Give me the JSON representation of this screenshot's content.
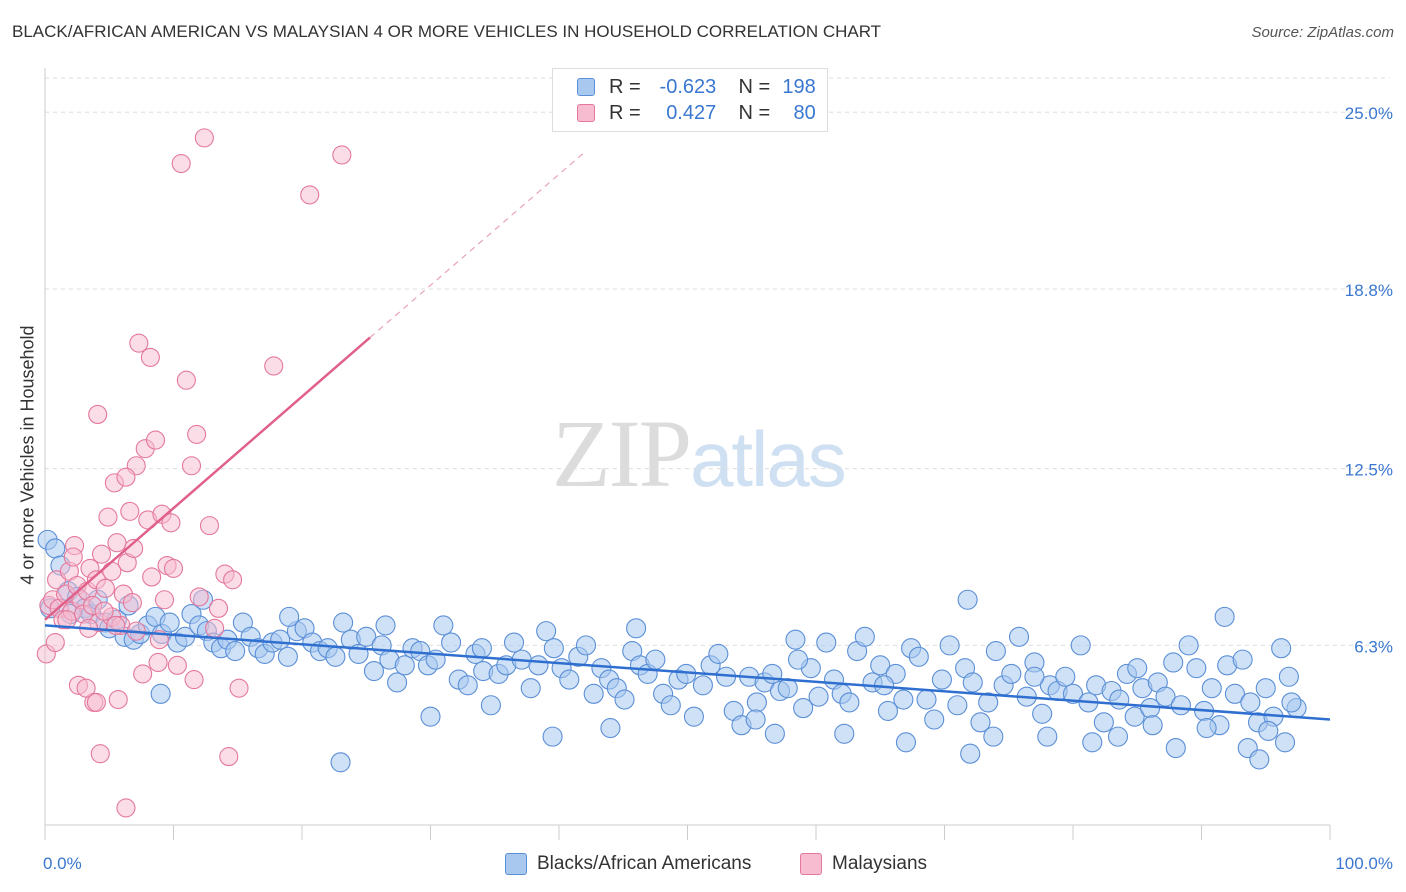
{
  "title": "BLACK/AFRICAN AMERICAN VS MALAYSIAN 4 OR MORE VEHICLES IN HOUSEHOLD CORRELATION CHART",
  "source": "Source: ZipAtlas.com",
  "watermark": {
    "zip": "ZIP",
    "atlas": "atlas"
  },
  "legend": {
    "r_label": "R =",
    "n_label": "N =",
    "rows": [
      {
        "r": "-0.623",
        "n": "198",
        "fill": "#a8c8f0",
        "stroke": "#5b8fd6"
      },
      {
        "r": "0.427",
        "n": "80",
        "fill": "#f7bcd0",
        "stroke": "#e4789c"
      }
    ]
  },
  "bottom_legend": [
    {
      "label": "Blacks/African Americans"
    },
    {
      "label": "Malaysians"
    }
  ],
  "chart_data": {
    "type": "scatter",
    "title": "BLACK/AFRICAN AMERICAN VS MALAYSIAN 4 OR MORE VEHICLES IN HOUSEHOLD CORRELATION CHART",
    "xlabel": "",
    "ylabel": "4 or more Vehicles in Household",
    "xlim": [
      0,
      100
    ],
    "ylim": [
      0,
      26.2
    ],
    "x_tick_labels": [
      "0.0%",
      "100.0%"
    ],
    "y_ticks": [
      6.3,
      12.5,
      18.8,
      25.0
    ],
    "y_tick_labels": [
      "6.3%",
      "12.5%",
      "18.8%",
      "25.0%"
    ],
    "grid": true,
    "legend_position": "top-center",
    "colors": {
      "blue_fill": "#a8c8f0",
      "blue_stroke": "#5b8fd6",
      "blue_line": "#2f6fd0",
      "pink_fill": "#f7bcd0",
      "pink_stroke": "#e4789c",
      "pink_line": "#e0608a",
      "axis_text": "#3a77d0",
      "grid": "#dddddd"
    },
    "series": [
      {
        "name": "Blacks/African Americans",
        "R": -0.623,
        "N": 198,
        "trend": {
          "x": [
            0,
            100
          ],
          "y": [
            7.0,
            3.7
          ]
        },
        "points": [
          [
            0.2,
            10.0
          ],
          [
            0.8,
            9.7
          ],
          [
            1.2,
            9.1
          ],
          [
            1.8,
            8.2
          ],
          [
            2.5,
            8.0
          ],
          [
            3.1,
            7.6
          ],
          [
            3.6,
            7.4
          ],
          [
            4.1,
            7.9
          ],
          [
            4.7,
            7.1
          ],
          [
            5.0,
            6.9
          ],
          [
            5.6,
            7.2
          ],
          [
            6.2,
            6.6
          ],
          [
            6.9,
            6.5
          ],
          [
            7.4,
            6.7
          ],
          [
            8.0,
            7.0
          ],
          [
            8.6,
            7.3
          ],
          [
            9.1,
            6.7
          ],
          [
            9.7,
            7.1
          ],
          [
            10.3,
            6.4
          ],
          [
            10.9,
            6.6
          ],
          [
            11.4,
            7.4
          ],
          [
            12.0,
            7.0
          ],
          [
            12.6,
            6.8
          ],
          [
            13.1,
            6.4
          ],
          [
            13.7,
            6.2
          ],
          [
            14.2,
            6.5
          ],
          [
            14.8,
            6.1
          ],
          [
            15.4,
            7.1
          ],
          [
            16.0,
            6.6
          ],
          [
            16.6,
            6.2
          ],
          [
            17.1,
            6.0
          ],
          [
            17.7,
            6.4
          ],
          [
            18.3,
            6.5
          ],
          [
            18.9,
            5.9
          ],
          [
            19.6,
            6.8
          ],
          [
            20.2,
            6.9
          ],
          [
            20.8,
            6.4
          ],
          [
            21.4,
            6.1
          ],
          [
            22.0,
            6.2
          ],
          [
            22.6,
            5.9
          ],
          [
            23.2,
            7.1
          ],
          [
            23.8,
            6.5
          ],
          [
            24.4,
            6.0
          ],
          [
            25.0,
            6.6
          ],
          [
            25.6,
            5.4
          ],
          [
            26.2,
            6.3
          ],
          [
            26.8,
            5.8
          ],
          [
            27.4,
            5.0
          ],
          [
            28.0,
            5.6
          ],
          [
            28.6,
            6.2
          ],
          [
            29.2,
            6.1
          ],
          [
            29.8,
            5.6
          ],
          [
            30.4,
            5.8
          ],
          [
            31.0,
            7.0
          ],
          [
            31.6,
            6.4
          ],
          [
            32.2,
            5.1
          ],
          [
            32.9,
            4.9
          ],
          [
            33.5,
            6.0
          ],
          [
            34.1,
            5.4
          ],
          [
            34.7,
            4.2
          ],
          [
            35.3,
            5.3
          ],
          [
            35.9,
            5.6
          ],
          [
            36.5,
            6.4
          ],
          [
            37.1,
            5.8
          ],
          [
            37.8,
            4.8
          ],
          [
            38.4,
            5.6
          ],
          [
            39.0,
            6.8
          ],
          [
            39.6,
            6.2
          ],
          [
            40.2,
            5.5
          ],
          [
            40.8,
            5.1
          ],
          [
            41.5,
            5.9
          ],
          [
            42.1,
            6.3
          ],
          [
            42.7,
            4.6
          ],
          [
            43.3,
            5.5
          ],
          [
            43.9,
            5.1
          ],
          [
            44.5,
            4.8
          ],
          [
            45.1,
            4.4
          ],
          [
            45.7,
            6.1
          ],
          [
            46.3,
            5.6
          ],
          [
            46.9,
            5.3
          ],
          [
            47.5,
            5.8
          ],
          [
            48.1,
            4.6
          ],
          [
            48.7,
            4.2
          ],
          [
            49.3,
            5.1
          ],
          [
            49.9,
            5.3
          ],
          [
            50.5,
            3.8
          ],
          [
            51.2,
            4.9
          ],
          [
            51.8,
            5.6
          ],
          [
            52.4,
            6.0
          ],
          [
            53.0,
            5.2
          ],
          [
            53.6,
            4.0
          ],
          [
            54.2,
            3.5
          ],
          [
            54.8,
            5.2
          ],
          [
            55.4,
            4.3
          ],
          [
            56.0,
            5.0
          ],
          [
            56.6,
            5.3
          ],
          [
            57.2,
            4.7
          ],
          [
            57.8,
            4.8
          ],
          [
            58.4,
            6.5
          ],
          [
            59.0,
            4.1
          ],
          [
            59.6,
            5.5
          ],
          [
            60.2,
            4.5
          ],
          [
            60.8,
            6.4
          ],
          [
            61.4,
            5.1
          ],
          [
            62.0,
            4.6
          ],
          [
            62.6,
            4.3
          ],
          [
            63.2,
            6.1
          ],
          [
            63.8,
            6.6
          ],
          [
            64.4,
            5.0
          ],
          [
            65.0,
            5.6
          ],
          [
            65.6,
            4.0
          ],
          [
            66.2,
            5.3
          ],
          [
            66.8,
            4.4
          ],
          [
            67.4,
            6.2
          ],
          [
            68.0,
            5.9
          ],
          [
            68.6,
            4.4
          ],
          [
            69.2,
            3.7
          ],
          [
            69.8,
            5.1
          ],
          [
            70.4,
            6.3
          ],
          [
            71.0,
            4.2
          ],
          [
            71.6,
            5.5
          ],
          [
            72.2,
            5.0
          ],
          [
            72.8,
            3.6
          ],
          [
            73.4,
            4.3
          ],
          [
            74.0,
            6.1
          ],
          [
            74.6,
            4.9
          ],
          [
            75.2,
            5.3
          ],
          [
            75.8,
            6.6
          ],
          [
            76.4,
            4.5
          ],
          [
            77.0,
            5.7
          ],
          [
            77.6,
            3.9
          ],
          [
            78.2,
            4.9
          ],
          [
            78.8,
            4.7
          ],
          [
            79.4,
            5.2
          ],
          [
            80.0,
            4.6
          ],
          [
            80.6,
            6.3
          ],
          [
            81.2,
            4.3
          ],
          [
            81.8,
            4.9
          ],
          [
            82.4,
            3.6
          ],
          [
            83.0,
            4.7
          ],
          [
            83.6,
            4.4
          ],
          [
            84.2,
            5.3
          ],
          [
            84.8,
            3.8
          ],
          [
            85.4,
            4.8
          ],
          [
            86.0,
            4.1
          ],
          [
            86.6,
            5.0
          ],
          [
            87.2,
            4.5
          ],
          [
            87.8,
            5.7
          ],
          [
            88.4,
            4.2
          ],
          [
            89.0,
            6.3
          ],
          [
            89.6,
            5.5
          ],
          [
            90.2,
            4.0
          ],
          [
            90.8,
            4.8
          ],
          [
            91.4,
            3.5
          ],
          [
            92.0,
            5.6
          ],
          [
            92.6,
            4.6
          ],
          [
            93.2,
            5.8
          ],
          [
            93.8,
            4.3
          ],
          [
            94.4,
            3.6
          ],
          [
            95.0,
            4.8
          ],
          [
            95.6,
            3.8
          ],
          [
            96.2,
            6.2
          ],
          [
            96.8,
            5.2
          ],
          [
            97.4,
            4.1
          ],
          [
            0.4,
            7.6
          ],
          [
            2.0,
            7.4
          ],
          [
            6.5,
            7.7
          ],
          [
            12.3,
            7.9
          ],
          [
            19.0,
            7.3
          ],
          [
            26.5,
            7.0
          ],
          [
            34.0,
            6.2
          ],
          [
            46.0,
            6.9
          ],
          [
            58.6,
            5.8
          ],
          [
            65.3,
            4.9
          ],
          [
            71.8,
            7.9
          ],
          [
            77.0,
            5.2
          ],
          [
            85.0,
            5.5
          ],
          [
            91.8,
            7.3
          ],
          [
            97.0,
            4.3
          ],
          [
            9.0,
            4.6
          ],
          [
            23.0,
            2.2
          ],
          [
            30.0,
            3.8
          ],
          [
            39.5,
            3.1
          ],
          [
            44.0,
            3.4
          ],
          [
            56.8,
            3.2
          ],
          [
            67.0,
            2.9
          ],
          [
            72.0,
            2.5
          ],
          [
            78.0,
            3.1
          ],
          [
            83.5,
            3.1
          ],
          [
            88.0,
            2.7
          ],
          [
            93.6,
            2.7
          ],
          [
            96.5,
            2.9
          ],
          [
            94.5,
            2.3
          ],
          [
            55.3,
            3.7
          ],
          [
            62.2,
            3.2
          ],
          [
            73.8,
            3.1
          ],
          [
            81.5,
            2.9
          ],
          [
            86.2,
            3.5
          ],
          [
            90.4,
            3.4
          ],
          [
            95.2,
            3.3
          ]
        ]
      },
      {
        "name": "Malaysians",
        "R": 0.427,
        "N": 80,
        "trend": {
          "x": [
            0,
            25.3
          ],
          "y": [
            7.2,
            17.1
          ]
        },
        "trend_dashed": {
          "x": [
            25.3,
            42
          ],
          "y": [
            17.1,
            23.6
          ]
        },
        "points": [
          [
            0.1,
            6.0
          ],
          [
            0.3,
            7.7
          ],
          [
            0.6,
            7.9
          ],
          [
            0.9,
            8.6
          ],
          [
            1.1,
            7.6
          ],
          [
            1.4,
            7.2
          ],
          [
            1.6,
            8.1
          ],
          [
            1.9,
            8.9
          ],
          [
            2.1,
            7.5
          ],
          [
            2.3,
            9.8
          ],
          [
            2.5,
            8.4
          ],
          [
            2.8,
            7.9
          ],
          [
            3.0,
            7.4
          ],
          [
            3.3,
            8.2
          ],
          [
            3.5,
            9.0
          ],
          [
            3.7,
            7.7
          ],
          [
            4.0,
            8.6
          ],
          [
            4.2,
            7.1
          ],
          [
            4.4,
            9.5
          ],
          [
            4.7,
            8.3
          ],
          [
            4.9,
            10.8
          ],
          [
            5.2,
            7.3
          ],
          [
            5.4,
            12.0
          ],
          [
            5.6,
            9.9
          ],
          [
            5.9,
            7.0
          ],
          [
            6.1,
            8.1
          ],
          [
            6.4,
            9.2
          ],
          [
            6.6,
            11.0
          ],
          [
            6.8,
            7.8
          ],
          [
            7.1,
            12.6
          ],
          [
            7.3,
            16.9
          ],
          [
            7.6,
            5.3
          ],
          [
            7.8,
            13.2
          ],
          [
            8.0,
            10.7
          ],
          [
            8.3,
            8.7
          ],
          [
            8.6,
            13.5
          ],
          [
            8.8,
            5.7
          ],
          [
            9.1,
            10.9
          ],
          [
            9.3,
            7.9
          ],
          [
            9.5,
            9.1
          ],
          [
            9.8,
            10.6
          ],
          [
            10.0,
            9.0
          ],
          [
            10.3,
            5.6
          ],
          [
            10.6,
            23.2
          ],
          [
            11.0,
            15.6
          ],
          [
            11.4,
            12.6
          ],
          [
            11.6,
            5.1
          ],
          [
            11.8,
            13.7
          ],
          [
            12.0,
            8.0
          ],
          [
            12.4,
            24.1
          ],
          [
            12.8,
            10.5
          ],
          [
            13.2,
            6.9
          ],
          [
            13.5,
            7.6
          ],
          [
            14.0,
            8.8
          ],
          [
            14.3,
            2.4
          ],
          [
            14.6,
            8.6
          ],
          [
            15.1,
            4.8
          ],
          [
            17.8,
            16.1
          ],
          [
            20.6,
            22.1
          ],
          [
            23.1,
            23.5
          ],
          [
            4.1,
            14.4
          ],
          [
            6.3,
            12.2
          ],
          [
            8.2,
            16.4
          ],
          [
            5.5,
            7.0
          ],
          [
            3.8,
            4.3
          ],
          [
            2.6,
            4.9
          ],
          [
            4.3,
            2.5
          ],
          [
            5.7,
            4.4
          ],
          [
            6.3,
            0.6
          ],
          [
            7.1,
            6.8
          ],
          [
            8.9,
            6.5
          ],
          [
            0.8,
            6.4
          ],
          [
            1.7,
            7.2
          ],
          [
            2.2,
            9.4
          ],
          [
            3.4,
            6.9
          ],
          [
            4.6,
            7.5
          ],
          [
            5.2,
            8.9
          ],
          [
            6.9,
            9.7
          ],
          [
            3.2,
            4.8
          ],
          [
            4.0,
            4.3
          ]
        ]
      }
    ]
  }
}
